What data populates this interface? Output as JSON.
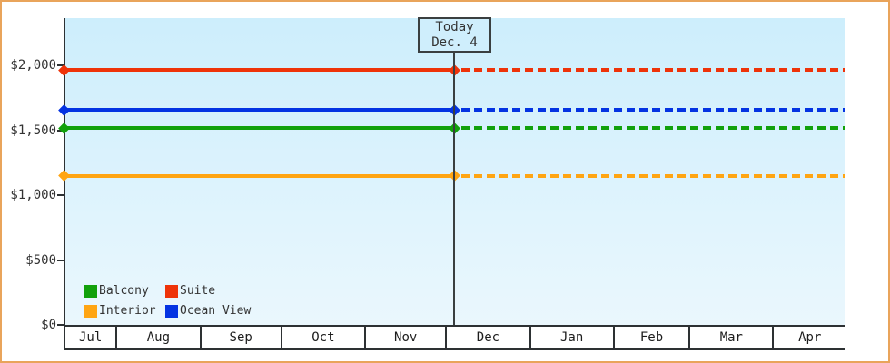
{
  "chart_data": {
    "type": "line",
    "title": "",
    "description": "Cruise cabin price chart: horizontal price lines per cabin category, solid with diamond endpoints up to today, dotted projection after today",
    "x_axis": {
      "months": [
        {
          "label": "Jul",
          "days": 19
        },
        {
          "label": "Aug",
          "days": 31
        },
        {
          "label": "Sep",
          "days": 30
        },
        {
          "label": "Oct",
          "days": 31
        },
        {
          "label": "Nov",
          "days": 30
        },
        {
          "label": "Dec",
          "days": 31
        },
        {
          "label": "Jan",
          "days": 31
        },
        {
          "label": "Feb",
          "days": 28
        },
        {
          "label": "Mar",
          "days": 31
        },
        {
          "label": "Apr",
          "days": 27
        }
      ]
    },
    "y_axis": {
      "ticks": [
        {
          "label": "$2,000",
          "value": 2000
        },
        {
          "label": "$1,500",
          "value": 1500
        },
        {
          "label": "$1,000",
          "value": 1000
        },
        {
          "label": "$500",
          "value": 500
        },
        {
          "label": "$0",
          "value": 0
        }
      ],
      "ylim": [
        0,
        2360
      ]
    },
    "today": {
      "label_line1": "Today",
      "label_line2": "Dec. 4",
      "days_from_chart_start": 144
    },
    "series": [
      {
        "name": "Suite",
        "color": "#ee3309",
        "value": 1965
      },
      {
        "name": "Ocean View",
        "color": "#0433e2",
        "value": 1655
      },
      {
        "name": "Balcony",
        "color": "#12a10b",
        "value": 1515
      },
      {
        "name": "Interior",
        "color": "#ffa513",
        "value": 1150
      }
    ],
    "legend": {
      "rows": [
        [
          "Balcony",
          "Suite"
        ],
        [
          "Interior",
          "Ocean View"
        ]
      ],
      "position": "inside-bottom-left"
    },
    "layout": {
      "grid": false,
      "plot_bg_top": "#cdeefc",
      "plot_bg_bottom": "#eaf7fd",
      "solid_before_today": true,
      "dotted_after_today": true
    }
  },
  "colors": {
    "frame_border": "#e9a45b",
    "axis": "#2d3133",
    "text": "#333333",
    "today_box_bg": "#cfeefc"
  }
}
